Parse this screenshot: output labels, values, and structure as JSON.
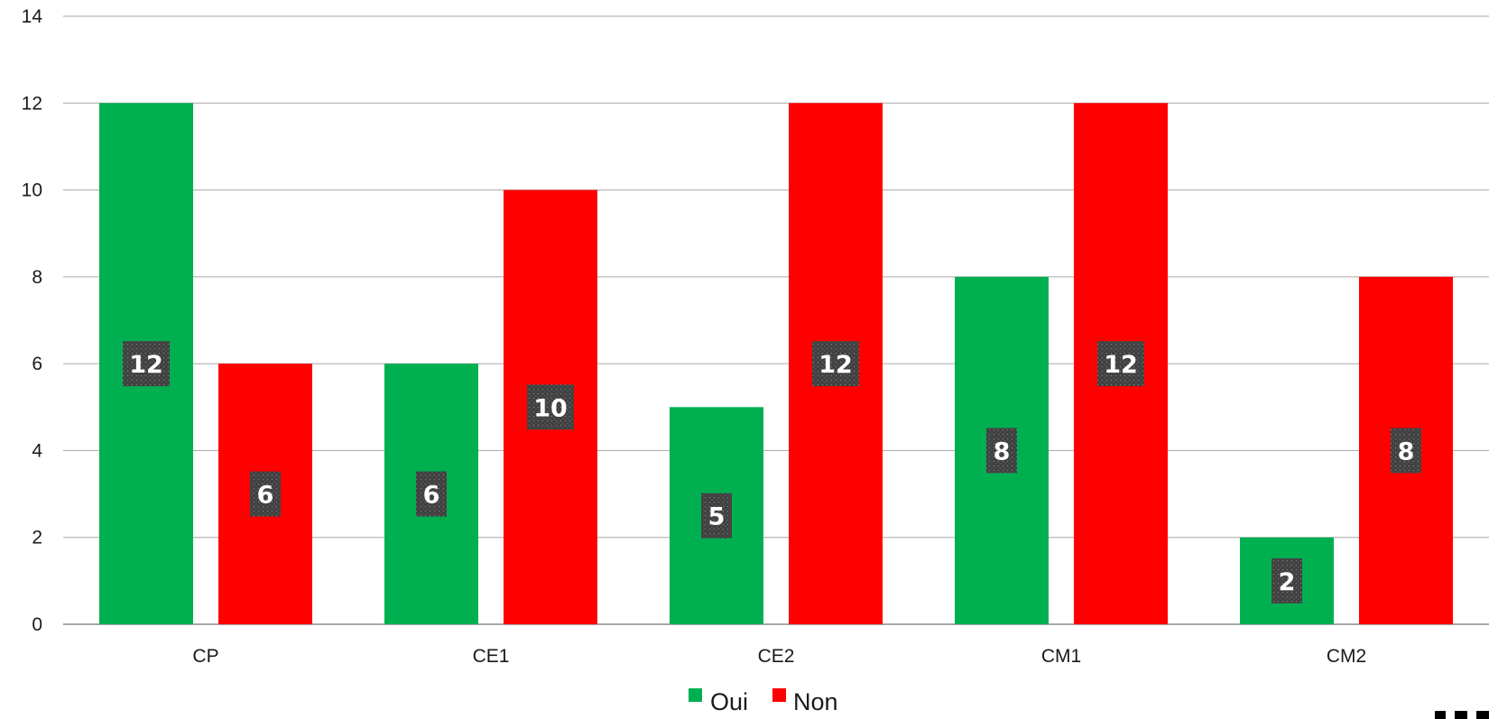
{
  "chart_data": {
    "type": "bar",
    "title": "",
    "xlabel": "",
    "ylabel": "",
    "categories": [
      "CP",
      "CE1",
      "CE2",
      "CM1",
      "CM2"
    ],
    "series": [
      {
        "name": "Oui",
        "color": "#00b050",
        "values": [
          12,
          6,
          5,
          8,
          2
        ]
      },
      {
        "name": "Non",
        "color": "#ff0000",
        "values": [
          6,
          10,
          12,
          12,
          8
        ]
      }
    ],
    "ylim": [
      0,
      14
    ],
    "yticks": [
      "0",
      "2",
      "4",
      "6",
      "8",
      "10",
      "12",
      "14"
    ],
    "grid": true,
    "legend": "bottom-center",
    "label_box_color": "#404040",
    "gridline_color": "#a6a6a6"
  }
}
